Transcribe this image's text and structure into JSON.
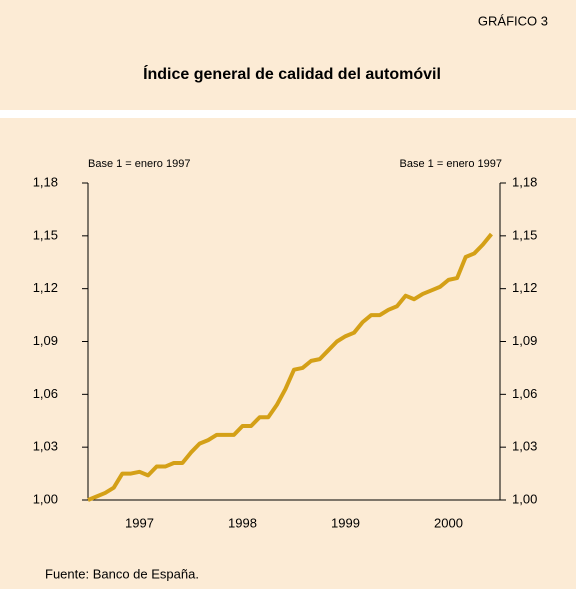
{
  "chart_data": {
    "type": "line",
    "label": "GRÁFICO 3",
    "title": "Índice general de calidad del automóvil",
    "y_label": "Base 1 = enero 1997",
    "y2_label": "Base 1 = enero 1997",
    "source": "Fuente: Banco de España.",
    "x": [
      1997,
      1997.0833,
      1997.1667,
      1997.25,
      1997.3333,
      1997.4167,
      1997.5,
      1997.5833,
      1997.6667,
      1997.75,
      1997.8333,
      1997.9167,
      1998,
      1998.0833,
      1998.1667,
      1998.25,
      1998.3333,
      1998.4167,
      1998.5,
      1998.5833,
      1998.6667,
      1998.75,
      1998.8333,
      1998.9167,
      1999,
      1999.0833,
      1999.1667,
      1999.25,
      1999.3333,
      1999.4167,
      1999.5,
      1999.5833,
      1999.6667,
      1999.75,
      1999.8333,
      1999.9167,
      2000,
      2000.0833,
      2000.1667,
      2000.25,
      2000.3333,
      2000.4167,
      2000.5,
      2000.5833,
      2000.6667,
      2000.75,
      2000.8333,
      2000.9167
    ],
    "series": [
      {
        "color": "#d4a017",
        "values": [
          1.0,
          1.002,
          1.004,
          1.007,
          1.015,
          1.015,
          1.016,
          1.014,
          1.019,
          1.019,
          1.021,
          1.021,
          1.027,
          1.032,
          1.034,
          1.037,
          1.037,
          1.037,
          1.042,
          1.042,
          1.047,
          1.047,
          1.054,
          1.063,
          1.074,
          1.075,
          1.079,
          1.08,
          1.085,
          1.09,
          1.093,
          1.095,
          1.101,
          1.105,
          1.105,
          1.108,
          1.11,
          1.116,
          1.114,
          1.117,
          1.119,
          1.121,
          1.125,
          1.126,
          1.138,
          1.14,
          1.145,
          1.151
        ]
      }
    ],
    "xlim": [
      1997,
      2001
    ],
    "xticks": [
      {
        "value": 1997.5,
        "label": "1997"
      },
      {
        "value": 1998.5,
        "label": "1998"
      },
      {
        "value": 1999.5,
        "label": "1999"
      },
      {
        "value": 2000.5,
        "label": "2000"
      }
    ],
    "ylim": [
      1.0,
      1.18
    ],
    "yticks": [
      {
        "value": 1.0,
        "label": "1,00"
      },
      {
        "value": 1.03,
        "label": "1,03"
      },
      {
        "value": 1.06,
        "label": "1,06"
      },
      {
        "value": 1.09,
        "label": "1,09"
      },
      {
        "value": 1.12,
        "label": "1,12"
      },
      {
        "value": 1.15,
        "label": "1,15"
      },
      {
        "value": 1.18,
        "label": "1,18"
      }
    ],
    "y2lim": [
      1.0,
      1.18
    ],
    "y2ticks": [
      {
        "value": 1.0,
        "label": "1,00"
      },
      {
        "value": 1.03,
        "label": "1,03"
      },
      {
        "value": 1.06,
        "label": "1,06"
      },
      {
        "value": 1.09,
        "label": "1,09"
      },
      {
        "value": 1.12,
        "label": "1,12"
      },
      {
        "value": 1.15,
        "label": "1,15"
      },
      {
        "value": 1.18,
        "label": "1,18"
      }
    ]
  }
}
